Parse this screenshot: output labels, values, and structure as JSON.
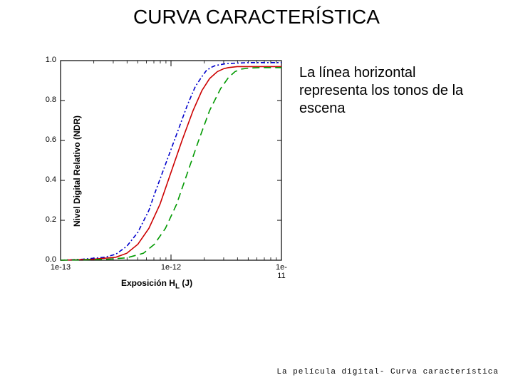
{
  "title": "CURVA CARACTERÍSTICA",
  "caption": "La línea horizontal representa los tonos de la escena",
  "footer": "La película digital- Curva característica",
  "chart": {
    "type": "line",
    "background_color": "#ffffff",
    "axis_color": "#000000",
    "xlabel": "Exposición H",
    "xlabel_sub": "L",
    "xlabel_suffix": " (J)",
    "ylabel": "Nivel Digital Relativo (NDR)",
    "x_scale": "log",
    "xlim_exp": [
      -13,
      -11
    ],
    "ylim": [
      0.0,
      1.0
    ],
    "ytick_step": 0.2,
    "yticks": [
      0.0,
      0.2,
      0.4,
      0.6,
      0.8,
      1.0
    ],
    "xticks_exp": [
      -13,
      -12,
      -11
    ],
    "xtick_labels": [
      "1e-13",
      "1e-12",
      "1e-11"
    ],
    "label_fontsize": 12,
    "tick_fontsize": 11,
    "series": [
      {
        "name": "blue",
        "color": "#0000cc",
        "dash": "6,3,2,3",
        "width": 1.6,
        "x_exp": [
          -13.0,
          -12.8,
          -12.6,
          -12.5,
          -12.4,
          -12.3,
          -12.2,
          -12.15,
          -12.05,
          -11.95,
          -11.85,
          -11.78,
          -11.72,
          -11.68,
          -11.64,
          -11.6,
          -11.5,
          -11.3,
          -11.0
        ],
        "y": [
          0.0,
          0.005,
          0.015,
          0.03,
          0.07,
          0.14,
          0.25,
          0.33,
          0.48,
          0.63,
          0.78,
          0.87,
          0.92,
          0.95,
          0.965,
          0.975,
          0.985,
          0.99,
          0.99
        ]
      },
      {
        "name": "red",
        "color": "#cc0000",
        "dash": "",
        "width": 1.6,
        "x_exp": [
          -13.0,
          -12.7,
          -12.5,
          -12.4,
          -12.3,
          -12.2,
          -12.1,
          -12.0,
          -11.9,
          -11.8,
          -11.72,
          -11.65,
          -11.58,
          -11.52,
          -11.48,
          -11.4,
          -11.2,
          -11.0
        ],
        "y": [
          0.0,
          0.005,
          0.015,
          0.035,
          0.08,
          0.16,
          0.28,
          0.44,
          0.6,
          0.75,
          0.85,
          0.91,
          0.945,
          0.96,
          0.965,
          0.97,
          0.97,
          0.97
        ]
      },
      {
        "name": "green",
        "color": "#009900",
        "dash": "10,6",
        "width": 1.6,
        "x_exp": [
          -13.0,
          -12.6,
          -12.4,
          -12.25,
          -12.15,
          -12.05,
          -11.95,
          -11.85,
          -11.75,
          -11.65,
          -11.55,
          -11.48,
          -11.42,
          -11.36,
          -11.3,
          -11.2,
          -11.0
        ],
        "y": [
          0.0,
          0.004,
          0.012,
          0.035,
          0.08,
          0.16,
          0.28,
          0.44,
          0.6,
          0.75,
          0.86,
          0.915,
          0.945,
          0.958,
          0.962,
          0.965,
          0.965
        ]
      }
    ]
  }
}
